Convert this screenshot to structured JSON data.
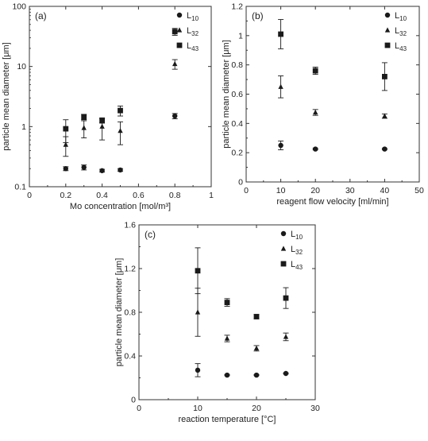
{
  "chart_data": [
    {
      "type": "scatter",
      "panel_label": "(a)",
      "xlabel": "Mo concentration [mol/m³]",
      "ylabel": "particle mean diameter [μm]",
      "xlim": [
        0,
        1.0
      ],
      "ylim": [
        0.1,
        100
      ],
      "yscale": "log",
      "x_ticks": [
        0,
        0.2,
        0.4,
        0.6,
        0.8,
        1.0
      ],
      "x_tick_labels": [
        "0",
        "0.2",
        "0.4",
        "0.6",
        "0.8",
        "1"
      ],
      "y_ticks": [
        0.1,
        1,
        10,
        100
      ],
      "y_tick_labels": [
        "0.1",
        "1",
        "10",
        "100"
      ],
      "grid": false,
      "legend_position": "top-right",
      "series": [
        {
          "name": "L10",
          "sub": "10",
          "marker": "circle",
          "points": [
            {
              "x": 0.2,
              "y": 0.2,
              "err": 0.015
            },
            {
              "x": 0.3,
              "y": 0.21,
              "err": 0.02
            },
            {
              "x": 0.4,
              "y": 0.185,
              "err": 0.01
            },
            {
              "x": 0.5,
              "y": 0.19,
              "err": 0.01
            },
            {
              "x": 0.8,
              "y": 1.5,
              "err": 0.15
            }
          ]
        },
        {
          "name": "L32",
          "sub": "32",
          "marker": "triangle",
          "points": [
            {
              "x": 0.2,
              "y": 0.5,
              "err": 0.18
            },
            {
              "x": 0.3,
              "y": 0.95,
              "err": 0.3
            },
            {
              "x": 0.4,
              "y": 1.0,
              "err": 0.4
            },
            {
              "x": 0.5,
              "y": 0.85,
              "err": 0.35
            },
            {
              "x": 0.8,
              "y": 11,
              "err": 2
            }
          ]
        },
        {
          "name": "L43",
          "sub": "43",
          "marker": "square",
          "points": [
            {
              "x": 0.2,
              "y": 0.92,
              "err": 0.38
            },
            {
              "x": 0.3,
              "y": 1.45,
              "err": 0.15
            },
            {
              "x": 0.4,
              "y": 1.25,
              "err": 0.1
            },
            {
              "x": 0.5,
              "y": 1.85,
              "err": 0.35
            },
            {
              "x": 0.8,
              "y": 38,
              "err": 5
            }
          ]
        }
      ]
    },
    {
      "type": "scatter",
      "panel_label": "(b)",
      "xlabel": "reagent flow velocity [ml/min]",
      "ylabel": "particle mean diameter [μm]",
      "xlim": [
        0,
        50
      ],
      "ylim": [
        0,
        1.2
      ],
      "yscale": "linear",
      "x_ticks": [
        0,
        10,
        20,
        30,
        40,
        50
      ],
      "x_tick_labels": [
        "0",
        "10",
        "20",
        "30",
        "40",
        "50"
      ],
      "y_ticks": [
        0,
        0.2,
        0.4,
        0.6,
        0.8,
        1.0,
        1.2
      ],
      "y_tick_labels": [
        "0",
        "0.2",
        "0.4",
        "0.6",
        "0.8",
        "1",
        "1.2"
      ],
      "grid": false,
      "legend_position": "top-right",
      "series": [
        {
          "name": "L10",
          "sub": "10",
          "marker": "circle",
          "points": [
            {
              "x": 10,
              "y": 0.25,
              "err": 0.03
            },
            {
              "x": 20,
              "y": 0.225,
              "err": 0.005
            },
            {
              "x": 40,
              "y": 0.225,
              "err": 0.005
            }
          ]
        },
        {
          "name": "L32",
          "sub": "32",
          "marker": "triangle",
          "points": [
            {
              "x": 10,
              "y": 0.65,
              "err": 0.075
            },
            {
              "x": 20,
              "y": 0.475,
              "err": 0.02
            },
            {
              "x": 40,
              "y": 0.45,
              "err": 0.015
            }
          ]
        },
        {
          "name": "L43",
          "sub": "43",
          "marker": "square",
          "points": [
            {
              "x": 10,
              "y": 1.01,
              "err": 0.1
            },
            {
              "x": 20,
              "y": 0.76,
              "err": 0.025
            },
            {
              "x": 40,
              "y": 0.72,
              "err": 0.095
            }
          ]
        }
      ]
    },
    {
      "type": "scatter",
      "panel_label": "(c)",
      "xlabel": "reaction temperature [°C]",
      "ylabel": "particle mean diameter [μm]",
      "xlim": [
        0,
        30
      ],
      "ylim": [
        0,
        1.6
      ],
      "yscale": "linear",
      "x_ticks": [
        0,
        10,
        20,
        30
      ],
      "x_tick_labels": [
        "0",
        "10",
        "20",
        "30"
      ],
      "y_ticks": [
        0,
        0.4,
        0.8,
        1.2,
        1.6
      ],
      "y_tick_labels": [
        "0",
        "0.4",
        "0.8",
        "1.2",
        "1.6"
      ],
      "grid": false,
      "legend_position": "top-right",
      "series": [
        {
          "name": "L10",
          "sub": "10",
          "marker": "circle",
          "points": [
            {
              "x": 10,
              "y": 0.27,
              "err": 0.06
            },
            {
              "x": 15,
              "y": 0.225,
              "err": 0.005
            },
            {
              "x": 20,
              "y": 0.225,
              "err": 0.005
            },
            {
              "x": 25,
              "y": 0.24,
              "err": 0.005
            }
          ]
        },
        {
          "name": "L32",
          "sub": "32",
          "marker": "triangle",
          "points": [
            {
              "x": 10,
              "y": 0.8,
              "err": 0.22
            },
            {
              "x": 15,
              "y": 0.56,
              "err": 0.03
            },
            {
              "x": 20,
              "y": 0.47,
              "err": 0.025
            },
            {
              "x": 25,
              "y": 0.575,
              "err": 0.035
            }
          ]
        },
        {
          "name": "L43",
          "sub": "43",
          "marker": "square",
          "points": [
            {
              "x": 10,
              "y": 1.18,
              "err": 0.21
            },
            {
              "x": 15,
              "y": 0.89,
              "err": 0.035
            },
            {
              "x": 20,
              "y": 0.76,
              "err": 0.02
            },
            {
              "x": 25,
              "y": 0.93,
              "err": 0.095
            }
          ]
        }
      ]
    }
  ],
  "colors": {
    "marker": "#1a1a1a",
    "axis": "#333333",
    "text": "#222222"
  }
}
